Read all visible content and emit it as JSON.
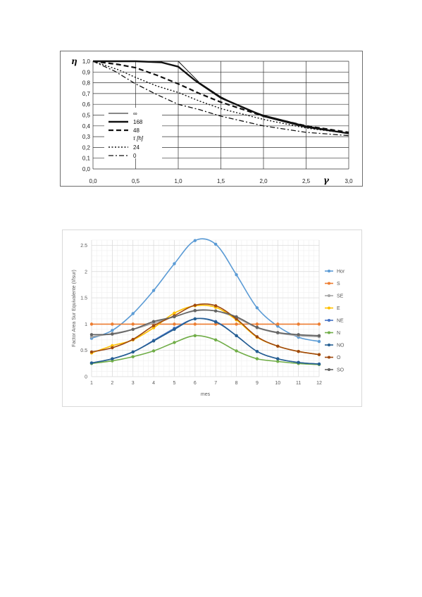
{
  "chart_data": [
    {
      "type": "line",
      "ylabel": "η",
      "xlabel": "γ",
      "xlim": [
        0,
        3
      ],
      "ylim": [
        0,
        1
      ],
      "x_ticks": [
        "0,0",
        "0,5",
        "1,0",
        "1,5",
        "2,0",
        "2,5",
        "3,0"
      ],
      "y_ticks": [
        "0,0",
        "0,1",
        "0,2",
        "0,3",
        "0,4",
        "0,5",
        "0,6",
        "0,7",
        "0,8",
        "0,9",
        "1,0"
      ],
      "grid": true,
      "legend_title": "τ [h]",
      "legend_position": "lower-left",
      "series": [
        {
          "name": "∞",
          "style": "thin",
          "x": [
            0,
            0.5,
            1.0,
            1.1,
            1.25,
            1.5,
            1.75,
            2.0,
            2.5,
            3.0
          ],
          "y": [
            1,
            1,
            1,
            0.92,
            0.8,
            0.67,
            0.57,
            0.5,
            0.4,
            0.33
          ]
        },
        {
          "name": "168",
          "style": "thick",
          "x": [
            0,
            0.5,
            0.8,
            1.0,
            1.2,
            1.5,
            2.0,
            2.5,
            3.0
          ],
          "y": [
            1,
            1,
            0.99,
            0.95,
            0.82,
            0.66,
            0.49,
            0.39,
            0.33
          ]
        },
        {
          "name": "48",
          "style": "dash",
          "x": [
            0,
            0.3,
            0.5,
            0.75,
            1.0,
            1.25,
            1.5,
            2.0,
            2.5,
            3.0
          ],
          "y": [
            1,
            0.97,
            0.94,
            0.87,
            0.79,
            0.7,
            0.62,
            0.49,
            0.4,
            0.34
          ]
        },
        {
          "name": "24",
          "style": "dot",
          "x": [
            0,
            0.3,
            0.5,
            0.75,
            1.0,
            1.25,
            1.5,
            2.0,
            2.5,
            3.0
          ],
          "y": [
            1,
            0.92,
            0.85,
            0.77,
            0.71,
            0.63,
            0.56,
            0.46,
            0.38,
            0.33
          ]
        },
        {
          "name": "0",
          "style": "dashdot",
          "x": [
            0,
            0.25,
            0.5,
            0.75,
            1.0,
            1.25,
            1.5,
            2.0,
            2.5,
            3.0
          ],
          "y": [
            1,
            0.91,
            0.79,
            0.69,
            0.6,
            0.55,
            0.49,
            0.4,
            0.34,
            0.31
          ]
        }
      ]
    },
    {
      "type": "line",
      "xlabel": "mes",
      "ylabel": "Factor Area Sur Equivalente (I/Isur)",
      "xlim": [
        1,
        12
      ],
      "ylim": [
        0,
        2.6
      ],
      "x_ticks": [
        "1",
        "2",
        "3",
        "4",
        "5",
        "6",
        "7",
        "8",
        "9",
        "10",
        "11",
        "12"
      ],
      "y_ticks": [
        "0",
        "0.5",
        "1",
        "1.5",
        "2",
        "2.5"
      ],
      "grid": true,
      "legend_position": "right",
      "categories": [
        1,
        2,
        3,
        4,
        5,
        6,
        7,
        8,
        9,
        10,
        11,
        12
      ],
      "series": [
        {
          "name": "Hor",
          "color": "#5b9bd5",
          "values": [
            0.73,
            0.88,
            1.2,
            1.64,
            2.15,
            2.59,
            2.52,
            1.94,
            1.31,
            0.96,
            0.75,
            0.67
          ]
        },
        {
          "name": "S",
          "color": "#ed7d31",
          "values": [
            1,
            1,
            1,
            1,
            1,
            1,
            1,
            1,
            1,
            1,
            1,
            1
          ]
        },
        {
          "name": "SE",
          "color": "#a5a5a5",
          "values": [
            0.76,
            0.82,
            0.9,
            1.02,
            1.14,
            1.25,
            1.25,
            1.12,
            0.93,
            0.83,
            0.78,
            0.76
          ]
        },
        {
          "name": "E",
          "color": "#ffc000",
          "values": [
            0.45,
            0.59,
            0.7,
            0.93,
            1.21,
            1.35,
            1.32,
            1.08,
            0.75,
            0.58,
            0.48,
            0.42
          ]
        },
        {
          "name": "NE",
          "color": "#4472c4",
          "values": [
            0.26,
            0.34,
            0.47,
            0.69,
            0.92,
            1.1,
            1.05,
            0.78,
            0.48,
            0.34,
            0.27,
            0.24
          ]
        },
        {
          "name": "N",
          "color": "#70ad47",
          "values": [
            0.25,
            0.3,
            0.38,
            0.49,
            0.65,
            0.78,
            0.7,
            0.49,
            0.34,
            0.29,
            0.25,
            0.23
          ]
        },
        {
          "name": "NO",
          "color": "#255e91",
          "values": [
            0.26,
            0.34,
            0.47,
            0.68,
            0.9,
            1.1,
            1.04,
            0.78,
            0.48,
            0.34,
            0.27,
            0.24
          ]
        },
        {
          "name": "O",
          "color": "#9e480e",
          "values": [
            0.47,
            0.55,
            0.71,
            0.97,
            1.16,
            1.36,
            1.35,
            1.1,
            0.76,
            0.58,
            0.48,
            0.42
          ]
        },
        {
          "name": "SO",
          "color": "#636363",
          "values": [
            0.8,
            0.81,
            0.9,
            1.05,
            1.14,
            1.26,
            1.25,
            1.14,
            0.94,
            0.84,
            0.8,
            0.78
          ]
        }
      ]
    }
  ]
}
